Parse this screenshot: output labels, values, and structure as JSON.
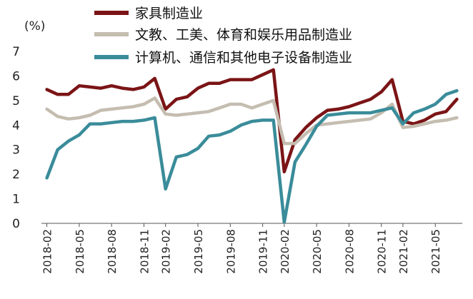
{
  "chart_data": {
    "type": "line",
    "unit_label": "(%)",
    "ylim": [
      0,
      7
    ],
    "yticks": [
      0,
      1,
      2,
      3,
      4,
      5,
      6,
      7
    ],
    "x": [
      "2018-02",
      "2018-03",
      "2018-04",
      "2018-05",
      "2018-06",
      "2018-07",
      "2018-08",
      "2018-09",
      "2018-10",
      "2018-11",
      "2018-12",
      "2019-02",
      "2019-03",
      "2019-04",
      "2019-05",
      "2019-06",
      "2019-07",
      "2019-08",
      "2019-09",
      "2019-10",
      "2019-11",
      "2019-12",
      "2020-02",
      "2020-03",
      "2020-04",
      "2020-05",
      "2020-06",
      "2020-07",
      "2020-08",
      "2020-09",
      "2020-10",
      "2020-11",
      "2020-12",
      "2021-02",
      "2021-03",
      "2021-04",
      "2021-05",
      "2021-06",
      "2021-07"
    ],
    "x_tick_labels": [
      "2018-02",
      "2018-05",
      "2018-08",
      "2018-11",
      "2019-02",
      "2019-05",
      "2019-08",
      "2019-11",
      "2020-02",
      "2020-05",
      "2020-08",
      "2020-11",
      "2021-02",
      "2021-05"
    ],
    "legend_position": "top",
    "grid": false,
    "series": [
      {
        "name": "家具制造业",
        "color": "#7b1416",
        "values": [
          5.45,
          5.25,
          5.25,
          5.6,
          5.55,
          5.5,
          5.6,
          5.5,
          5.45,
          5.55,
          5.9,
          4.65,
          5.05,
          5.15,
          5.5,
          5.7,
          5.7,
          5.85,
          5.85,
          5.85,
          6.05,
          6.25,
          2.1,
          3.4,
          3.9,
          4.3,
          4.6,
          4.65,
          4.75,
          4.9,
          5.05,
          5.35,
          5.85,
          4.15,
          4.05,
          4.2,
          4.45,
          4.55,
          5.05
        ]
      },
      {
        "name": "文教、工美、体育和娱乐用品制造业",
        "color": "#c4bdb0",
        "values": [
          4.65,
          4.35,
          4.25,
          4.3,
          4.4,
          4.6,
          4.65,
          4.7,
          4.75,
          4.85,
          5.1,
          4.45,
          4.4,
          4.45,
          4.5,
          4.55,
          4.7,
          4.85,
          4.85,
          4.7,
          4.85,
          5.0,
          3.25,
          3.25,
          3.65,
          4.0,
          4.05,
          4.1,
          4.15,
          4.2,
          4.25,
          4.5,
          4.85,
          3.9,
          3.95,
          4.05,
          4.15,
          4.2,
          4.3
        ]
      },
      {
        "name": "计算机、通信和其他电子设备制造业",
        "color": "#3a8c9a",
        "values": [
          1.85,
          3.0,
          3.35,
          3.6,
          4.05,
          4.05,
          4.1,
          4.15,
          4.15,
          4.2,
          4.3,
          1.4,
          2.7,
          2.8,
          3.05,
          3.55,
          3.6,
          3.75,
          4.0,
          4.15,
          4.2,
          4.2,
          0.05,
          2.5,
          3.2,
          3.95,
          4.4,
          4.45,
          4.5,
          4.5,
          4.5,
          4.6,
          4.7,
          4.05,
          4.5,
          4.65,
          4.85,
          5.25,
          5.4
        ]
      }
    ]
  }
}
